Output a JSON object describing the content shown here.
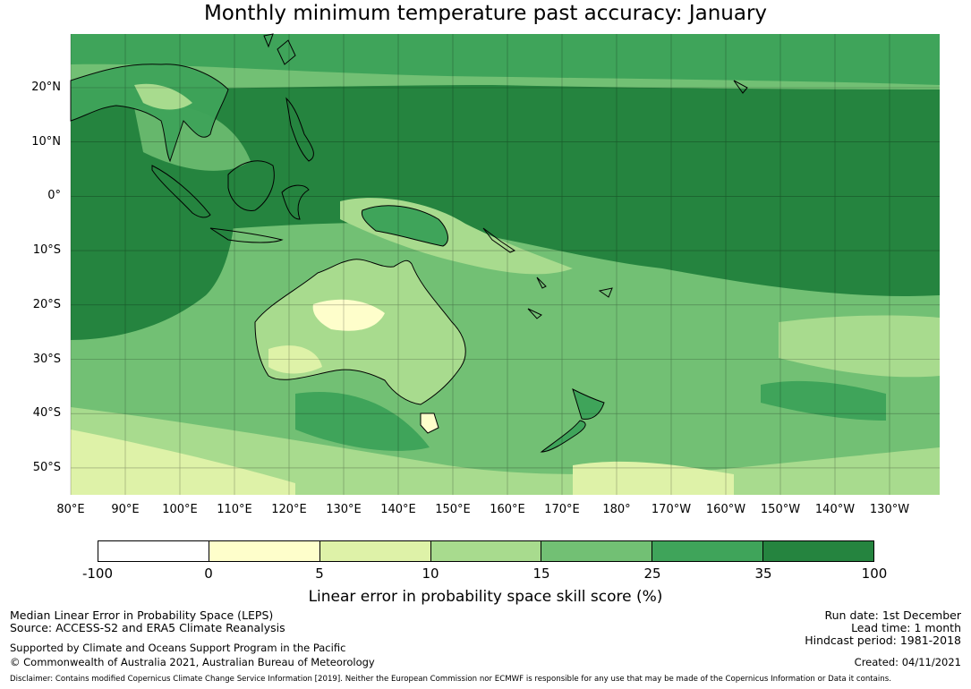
{
  "title": "Monthly minimum temperature past accuracy: January",
  "map": {
    "lat_labels": [
      "20°N",
      "10°N",
      "0°",
      "10°S",
      "20°S",
      "30°S",
      "40°S",
      "50°S"
    ],
    "lon_labels": [
      "80°E",
      "90°E",
      "100°E",
      "110°E",
      "120°E",
      "130°E",
      "140°E",
      "150°E",
      "160°E",
      "170°E",
      "180°",
      "170°W",
      "160°W",
      "150°W",
      "140°W",
      "130°W"
    ]
  },
  "colorbar": {
    "ticks": [
      "-100",
      "0",
      "5",
      "10",
      "15",
      "25",
      "35",
      "100"
    ],
    "colors": [
      "#ffffff",
      "#fefecb",
      "#def2a8",
      "#a8db8e",
      "#72c074",
      "#3fa45a",
      "#25843f"
    ],
    "label": "Linear error in probability space skill score (%)"
  },
  "footer": {
    "left_line1": "Median Linear Error in Probability Space (LEPS)",
    "left_line2": "Source: ACCESS-S2 and ERA5 Climate Reanalysis",
    "left_line3": "Supported by Climate and Oceans Support Program in the Pacific",
    "left_line4": "© Commonwealth of Australia 2021, Australian Bureau of Meteorology",
    "right_line1": "Run date: 1st December",
    "right_line2": "Lead time: 1 month",
    "right_line3": "Hindcast period: 1981-2018",
    "right_line4": "Created: 04/11/2021",
    "disclaimer": "Disclaimer: Contains modified Copernicus Climate Change Service Information [2019]. Neither the European Commission nor ECMWF is responsible for any use that may be made of the Copernicus Information or Data it contains."
  }
}
